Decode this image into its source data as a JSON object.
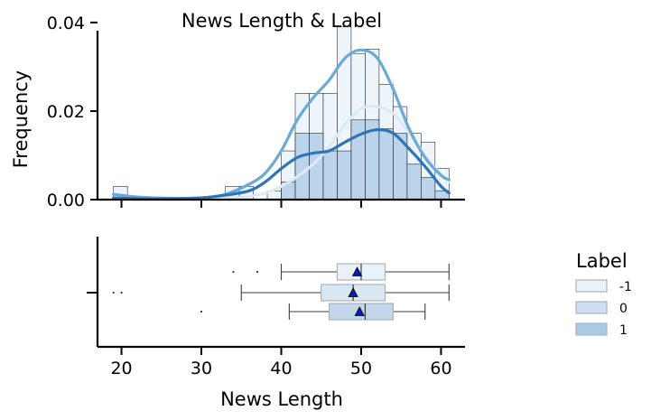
{
  "chart_data": [
    {
      "type": "histogram",
      "title": "News Length & Label",
      "xlabel": "",
      "ylabel": "Frequency",
      "xlim": [
        17,
        63
      ],
      "ylim": [
        0,
        0.041
      ],
      "x_ticks": [
        20,
        30,
        40,
        50,
        60
      ],
      "y_ticks": [
        0.0,
        0.02,
        0.04
      ],
      "y_tick_labels": [
        "0.00",
        "0.02",
        "0.04"
      ],
      "bin_edges": [
        19,
        20.75,
        22.5,
        24.25,
        26,
        27.75,
        29.5,
        31.25,
        33,
        34.75,
        36.5,
        38.25,
        40,
        41.75,
        43.5,
        45.25,
        47,
        48.75,
        50.5,
        52.25,
        54,
        55.75,
        57.5,
        59.25,
        61
      ],
      "series": [
        {
          "name": "-1",
          "color": "#eaf2f9",
          "kde_color": "#ddeaf6",
          "values": [
            0.003,
            0,
            0,
            0,
            0,
            0,
            0,
            0,
            0.003,
            0.003,
            0,
            0.002,
            0.011,
            0.024,
            0.024,
            0.024,
            0.039,
            0.033,
            0.034,
            0.026,
            0.021,
            0.015,
            0.013,
            0.007
          ],
          "kde": [
            [
              19,
              0.0002
            ],
            [
              23,
              0.0001
            ],
            [
              27,
              0.0002
            ],
            [
              31,
              0.0004
            ],
            [
              35,
              0.0005
            ],
            [
              38,
              0.0015
            ],
            [
              41,
              0.004
            ],
            [
              44,
              0.008
            ],
            [
              46,
              0.012
            ],
            [
              48,
              0.017
            ],
            [
              50,
              0.0205
            ],
            [
              52,
              0.021
            ],
            [
              54,
              0.0195
            ],
            [
              56,
              0.015
            ],
            [
              58,
              0.01
            ],
            [
              60,
              0.0055
            ],
            [
              61,
              0.004
            ]
          ]
        },
        {
          "name": "0",
          "color": "#cddff0",
          "kde_color": "#6aaad5",
          "values": [
            0,
            0,
            0,
            0,
            0,
            0,
            0,
            0,
            0,
            0,
            0,
            0,
            0,
            0,
            0,
            0,
            0,
            0,
            0,
            0,
            0,
            0,
            0,
            0
          ],
          "kde": [
            [
              19,
              0.0012
            ],
            [
              22,
              0.0006
            ],
            [
              26,
              0.0003
            ],
            [
              30,
              0.0004
            ],
            [
              33,
              0.0012
            ],
            [
              36,
              0.0035
            ],
            [
              38,
              0.006
            ],
            [
              40,
              0.011
            ],
            [
              42,
              0.018
            ],
            [
              44,
              0.023
            ],
            [
              46,
              0.027
            ],
            [
              48,
              0.032
            ],
            [
              50,
              0.0338
            ],
            [
              52,
              0.032
            ],
            [
              54,
              0.025
            ],
            [
              56,
              0.016
            ],
            [
              58,
              0.0095
            ],
            [
              60,
              0.0055
            ],
            [
              61,
              0.0045
            ]
          ]
        },
        {
          "name": "1",
          "color": "#a9c9e5",
          "kde_color": "#2f74b6",
          "values": [
            0,
            0,
            0,
            0,
            0,
            0,
            0,
            0,
            0,
            0,
            0,
            0,
            0.004,
            0.015,
            0.015,
            0.011,
            0.011,
            0.018,
            0.018,
            0.016,
            0.015,
            0.008,
            0.005,
            0.002
          ],
          "kde": [
            [
              19,
              0.0004
            ],
            [
              22,
              0.0002
            ],
            [
              26,
              0.0002
            ],
            [
              30,
              0.0004
            ],
            [
              33,
              0.001
            ],
            [
              36,
              0.002
            ],
            [
              38,
              0.004
            ],
            [
              40,
              0.007
            ],
            [
              42,
              0.0095
            ],
            [
              44,
              0.0105
            ],
            [
              46,
              0.011
            ],
            [
              48,
              0.013
            ],
            [
              50,
              0.0148
            ],
            [
              52,
              0.0158
            ],
            [
              54,
              0.015
            ],
            [
              56,
              0.0115
            ],
            [
              58,
              0.0075
            ],
            [
              60,
              0.003
            ],
            [
              61,
              0.0015
            ]
          ]
        }
      ]
    },
    {
      "type": "boxplot",
      "xlabel": "News Length",
      "ylabel": "",
      "xlim": [
        17,
        63
      ],
      "x_ticks": [
        20,
        30,
        40,
        50,
        60
      ],
      "series": [
        {
          "name": "-1",
          "color": "#eaf2f9",
          "whisker_low": 40,
          "q1": 47,
          "median": 50,
          "q3": 53,
          "whisker_high": 61,
          "mean": 49.5,
          "outliers": [
            34,
            37
          ]
        },
        {
          "name": "0",
          "color": "#d9e7f3",
          "whisker_low": 35,
          "q1": 45,
          "median": 49,
          "q3": 53,
          "whisker_high": 61,
          "mean": 49,
          "outliers": [
            19,
            20
          ]
        },
        {
          "name": "1",
          "color": "#c3d6ea",
          "whisker_low": 41,
          "q1": 46,
          "median": 50.5,
          "q3": 54,
          "whisker_high": 58,
          "mean": 49.8,
          "outliers": [
            30
          ]
        }
      ],
      "mean_marker_color": "#0a1fa8"
    }
  ],
  "legend": {
    "title": "Label",
    "placement": "right",
    "items": [
      {
        "label": "-1",
        "color": "#eaf2f9"
      },
      {
        "label": "0",
        "color": "#cddff0"
      },
      {
        "label": "1",
        "color": "#a9c9e5"
      }
    ]
  }
}
